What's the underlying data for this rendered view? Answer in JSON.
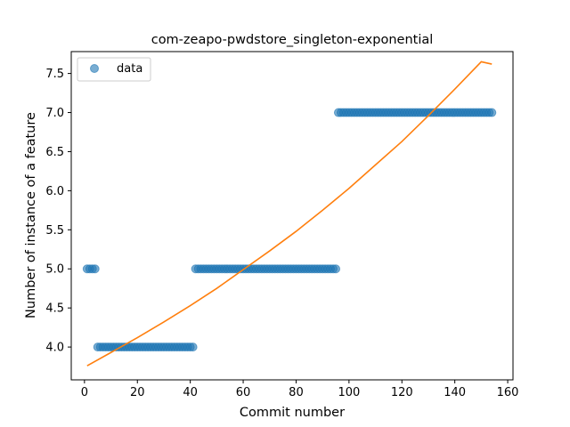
{
  "chart_data": {
    "type": "scatter",
    "title": "com-zeapo-pwdstore_singleton-exponential",
    "xlabel": "Commit number",
    "ylabel": "Number of instance of a feature",
    "xlim": [
      -5,
      162
    ],
    "ylim": [
      3.58,
      7.78
    ],
    "xticks": [
      0,
      20,
      40,
      60,
      80,
      100,
      120,
      140,
      160
    ],
    "yticks": [
      4.0,
      4.5,
      5.0,
      5.5,
      6.0,
      6.5,
      7.0,
      7.5
    ],
    "ytick_labels": [
      "4.0",
      "4.5",
      "5.0",
      "5.5",
      "6.0",
      "6.5",
      "7.0",
      "7.5"
    ],
    "legend": {
      "position": "upper-left",
      "entries": [
        "data"
      ]
    },
    "colors": {
      "data": "#1f77b4",
      "fit": "#ff7f0e"
    },
    "series": [
      {
        "name": "data",
        "kind": "points",
        "segments": [
          {
            "x_start": 1,
            "x_end": 4,
            "y": 5
          },
          {
            "x_start": 5,
            "x_end": 41,
            "y": 4
          },
          {
            "x_start": 42,
            "x_end": 95,
            "y": 5
          },
          {
            "x_start": 96,
            "x_end": 154,
            "y": 7
          }
        ]
      },
      {
        "kind": "line",
        "x": [
          1,
          10,
          20,
          30,
          40,
          50,
          60,
          70,
          80,
          90,
          100,
          110,
          120,
          130,
          140,
          150,
          154
        ],
        "y": [
          3.76,
          3.93,
          4.12,
          4.32,
          4.53,
          4.75,
          4.99,
          5.23,
          5.48,
          5.75,
          6.03,
          6.33,
          6.63,
          6.96,
          7.3,
          7.65,
          7.62
        ]
      }
    ]
  }
}
